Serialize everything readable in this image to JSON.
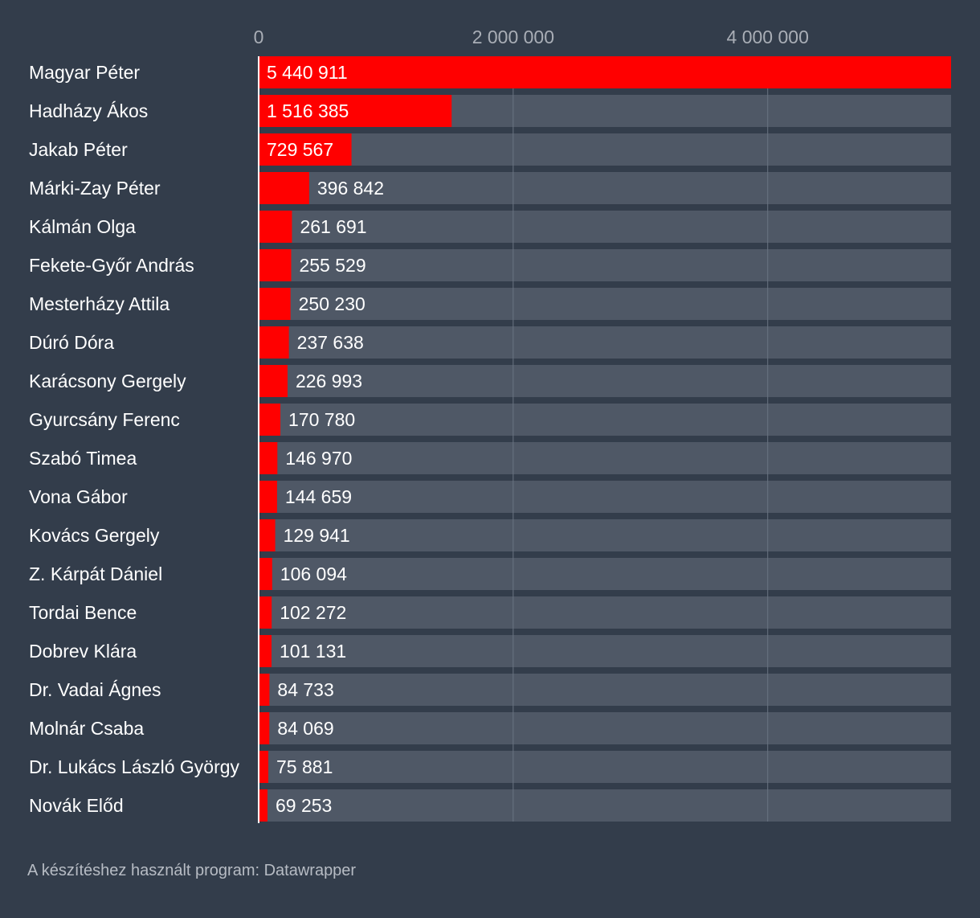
{
  "chart_data": {
    "type": "bar",
    "orientation": "horizontal",
    "categories": [
      "Magyar Péter",
      "Hadházy Ákos",
      "Jakab Péter",
      "Márki-Zay Péter",
      "Kálmán Olga",
      "Fekete-Győr András",
      "Mesterházy Attila",
      "Dúró Dóra",
      "Karácsony Gergely",
      "Gyurcsány Ferenc",
      "Szabó Timea",
      "Vona Gábor",
      "Kovács Gergely",
      "Z. Kárpát Dániel",
      "Tordai Bence",
      "Dobrev Klára",
      "Dr. Vadai Ágnes",
      "Molnár Csaba",
      "Dr. Lukács László György",
      "Novák Előd"
    ],
    "values": [
      5440911,
      1516385,
      729567,
      396842,
      261691,
      255529,
      250230,
      237638,
      226993,
      170780,
      146970,
      144659,
      129941,
      106094,
      102272,
      101131,
      84733,
      84069,
      75881,
      69253
    ],
    "value_labels": [
      "5 440 911",
      "1 516 385",
      "729 567",
      "396 842",
      "261 691",
      "255 529",
      "250 230",
      "237 638",
      "226 993",
      "170 780",
      "146 970",
      "144 659",
      "129 941",
      "106 094",
      "102 272",
      "101 131",
      "84 733",
      "84 069",
      "75 881",
      "69 253"
    ],
    "xlim": [
      0,
      5440911
    ],
    "ticks": [
      0,
      2000000,
      4000000
    ],
    "tick_labels": [
      "0",
      "2 000 000",
      "4 000 000"
    ],
    "title": "",
    "xlabel": "",
    "ylabel": "",
    "grid": true,
    "legend": "none",
    "bar_color": "#ff0000",
    "track_color": "#4f5866",
    "background_color": "#333d4b",
    "text_color": "#ffffff",
    "tick_label_color": "#a9aeb6",
    "gridline_color": "#6b7482"
  },
  "footer": {
    "text": "A készítéshez használt program: Datawrapper"
  }
}
